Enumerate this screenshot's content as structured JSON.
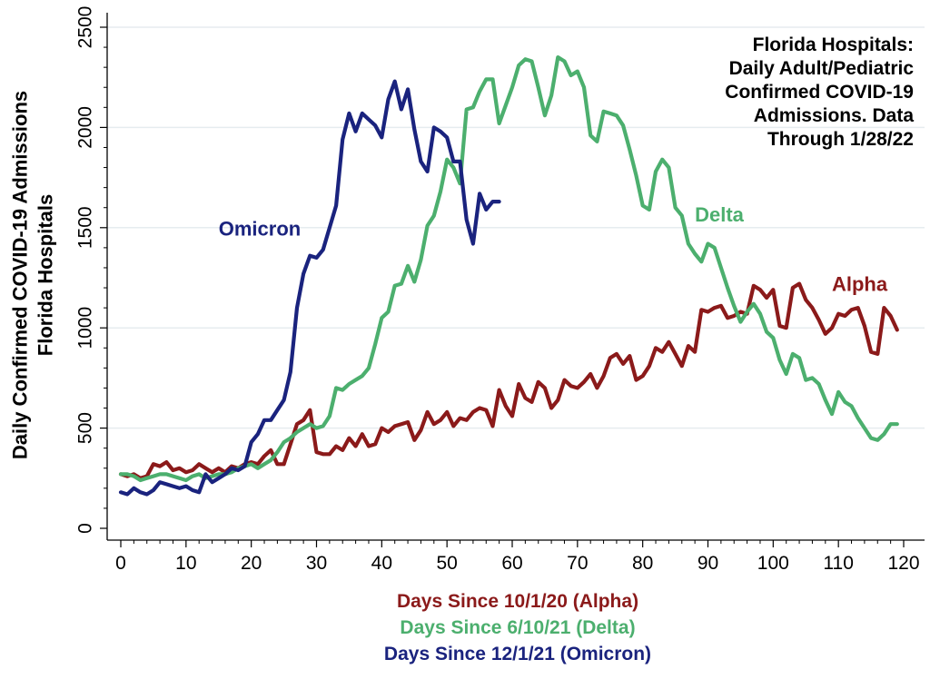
{
  "chart_data": {
    "type": "line",
    "title_lines": [
      "Florida Hospitals:",
      "Daily Adult/Pediatric",
      "Confirmed COVID-19",
      "Admissions. Data",
      "Through 1/28/22"
    ],
    "ylabel_lines": [
      "Daily Confirmed COVID-19 Admissions",
      "Florida Hospitals"
    ],
    "xlabels": [
      {
        "text": "Days Since 10/1/20 (Alpha)",
        "color": "#8b1a1a"
      },
      {
        "text": "Days Since 6/10/21 (Delta)",
        "color": "#4caf6e"
      },
      {
        "text": "Days Since 12/1/21 (Omicron)",
        "color": "#1a237e"
      }
    ],
    "xlim": [
      -2,
      122
    ],
    "ylim": [
      0,
      2560
    ],
    "xticks": [
      "0",
      "10",
      "20",
      "30",
      "40",
      "50",
      "60",
      "70",
      "80",
      "90",
      "100",
      "110",
      "120"
    ],
    "yticks": [
      "0",
      "500",
      "1000",
      "1500",
      "2000",
      "2500"
    ],
    "grid": "horizontal",
    "series": [
      {
        "name": "Alpha",
        "color": "#8b1a1a",
        "label_at": [
          109,
          1185
        ],
        "values": [
          270,
          260,
          270,
          250,
          260,
          320,
          310,
          330,
          290,
          300,
          280,
          290,
          320,
          300,
          280,
          300,
          280,
          310,
          300,
          320,
          330,
          320,
          360,
          390,
          320,
          320,
          420,
          520,
          540,
          590,
          380,
          370,
          370,
          410,
          390,
          450,
          410,
          470,
          410,
          420,
          500,
          480,
          510,
          520,
          530,
          440,
          490,
          580,
          520,
          540,
          580,
          510,
          550,
          540,
          580,
          600,
          590,
          510,
          690,
          610,
          560,
          720,
          650,
          630,
          730,
          700,
          600,
          640,
          740,
          710,
          700,
          730,
          770,
          700,
          760,
          850,
          870,
          820,
          860,
          740,
          760,
          810,
          900,
          880,
          930,
          870,
          810,
          910,
          880,
          1090,
          1080,
          1100,
          1110,
          1050,
          1060,
          1080,
          1070,
          1210,
          1190,
          1150,
          1190,
          1010,
          1000,
          1200,
          1220,
          1140,
          1100,
          1040,
          970,
          1000,
          1070,
          1060,
          1090,
          1100,
          1010,
          880,
          870,
          1100,
          1060,
          990
        ]
      },
      {
        "name": "Delta",
        "color": "#4caf6e",
        "label_at": [
          88,
          1530
        ],
        "values": [
          270,
          270,
          260,
          240,
          250,
          260,
          270,
          270,
          260,
          250,
          240,
          260,
          270,
          250,
          260,
          270,
          270,
          280,
          300,
          310,
          320,
          300,
          320,
          340,
          380,
          430,
          450,
          480,
          500,
          520,
          500,
          510,
          560,
          700,
          690,
          720,
          740,
          760,
          800,
          920,
          1050,
          1080,
          1210,
          1220,
          1310,
          1230,
          1340,
          1510,
          1560,
          1680,
          1840,
          1800,
          1720,
          2090,
          2100,
          2180,
          2240,
          2240,
          2020,
          2110,
          2200,
          2310,
          2340,
          2330,
          2200,
          2060,
          2160,
          2350,
          2330,
          2260,
          2280,
          2200,
          1960,
          1930,
          2080,
          2070,
          2060,
          2010,
          1890,
          1760,
          1610,
          1590,
          1780,
          1840,
          1800,
          1600,
          1560,
          1420,
          1370,
          1330,
          1420,
          1400,
          1300,
          1200,
          1110,
          1030,
          1080,
          1120,
          1070,
          980,
          950,
          840,
          770,
          870,
          850,
          740,
          750,
          720,
          640,
          570,
          680,
          630,
          610,
          550,
          500,
          450,
          440,
          470,
          520,
          520
        ]
      },
      {
        "name": "Omicron",
        "color": "#1a237e",
        "label_at": [
          15,
          1460
        ],
        "values": [
          180,
          170,
          200,
          180,
          170,
          190,
          230,
          220,
          210,
          200,
          210,
          190,
          180,
          270,
          230,
          250,
          270,
          300,
          290,
          310,
          430,
          470,
          540,
          540,
          590,
          640,
          780,
          1100,
          1270,
          1360,
          1350,
          1390,
          1500,
          1610,
          1940,
          2070,
          1980,
          2070,
          2040,
          2010,
          1950,
          2140,
          2230,
          2090,
          2190,
          1990,
          1830,
          1780,
          2000,
          1980,
          1950,
          1830,
          1830,
          1540,
          1420,
          1670,
          1590,
          1630,
          1630
        ]
      }
    ]
  }
}
